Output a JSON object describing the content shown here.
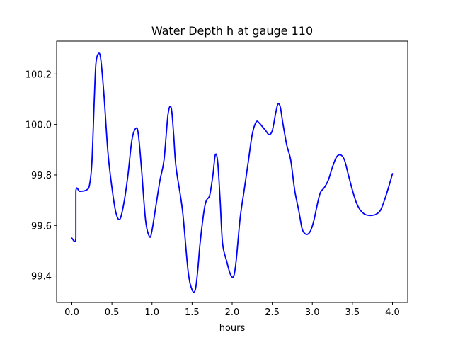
{
  "chart_data": {
    "type": "line",
    "title": "Water Depth h at gauge 110",
    "xlabel": "hours",
    "ylabel": "",
    "xlim": [
      -0.19,
      4.19
    ],
    "ylim": [
      99.295,
      100.33
    ],
    "xticks": [
      0.0,
      0.5,
      1.0,
      1.5,
      2.0,
      2.5,
      3.0,
      3.5,
      4.0
    ],
    "xtick_labels": [
      "0.0",
      "0.5",
      "1.0",
      "1.5",
      "2.0",
      "2.5",
      "3.0",
      "3.5",
      "4.0"
    ],
    "yticks": [
      99.4,
      99.6,
      99.8,
      100.0,
      100.2
    ],
    "ytick_labels": [
      "99.4",
      "99.6",
      "99.8",
      "100.0",
      "100.2"
    ],
    "grid": false,
    "series": [
      {
        "color": "#0000ff",
        "x": [
          0.0,
          0.05,
          0.05,
          0.1,
          0.18,
          0.22,
          0.25,
          0.28,
          0.3,
          0.33,
          0.36,
          0.4,
          0.45,
          0.5,
          0.55,
          0.6,
          0.65,
          0.7,
          0.75,
          0.8,
          0.83,
          0.87,
          0.92,
          0.97,
          1.0,
          1.05,
          1.1,
          1.15,
          1.2,
          1.24,
          1.27,
          1.3,
          1.38,
          1.45,
          1.5,
          1.54,
          1.57,
          1.6,
          1.65,
          1.68,
          1.72,
          1.76,
          1.79,
          1.82,
          1.85,
          1.88,
          1.93,
          1.98,
          2.02,
          2.05,
          2.1,
          2.15,
          2.2,
          2.25,
          2.3,
          2.34,
          2.38,
          2.42,
          2.46,
          2.5,
          2.54,
          2.57,
          2.6,
          2.63,
          2.68,
          2.73,
          2.78,
          2.83,
          2.87,
          2.9,
          2.94,
          2.98,
          3.02,
          3.06,
          3.1,
          3.15,
          3.2,
          3.25,
          3.3,
          3.35,
          3.4,
          3.45,
          3.5,
          3.55,
          3.6,
          3.65,
          3.7,
          3.75,
          3.8,
          3.85,
          3.9,
          3.95,
          4.0
        ],
        "y": [
          99.55,
          99.55,
          99.735,
          99.735,
          99.74,
          99.76,
          99.85,
          100.1,
          100.24,
          100.28,
          100.26,
          100.12,
          99.89,
          99.75,
          99.65,
          99.625,
          99.69,
          99.8,
          99.94,
          99.985,
          99.96,
          99.82,
          99.62,
          99.555,
          99.58,
          99.68,
          99.78,
          99.86,
          100.04,
          100.065,
          99.96,
          99.83,
          99.66,
          99.42,
          99.345,
          99.345,
          99.42,
          99.53,
          99.66,
          99.7,
          99.72,
          99.8,
          99.88,
          99.85,
          99.7,
          99.53,
          99.46,
          99.405,
          99.4,
          99.46,
          99.63,
          99.74,
          99.85,
          99.96,
          100.01,
          100.005,
          99.99,
          99.975,
          99.96,
          99.975,
          100.04,
          100.08,
          100.07,
          100.01,
          99.92,
          99.86,
          99.74,
          99.66,
          99.59,
          99.57,
          99.565,
          99.58,
          99.62,
          99.68,
          99.73,
          99.75,
          99.78,
          99.83,
          99.87,
          99.88,
          99.86,
          99.8,
          99.74,
          99.69,
          99.66,
          99.645,
          99.64,
          99.64,
          99.645,
          99.66,
          99.7,
          99.75,
          99.805
        ]
      }
    ]
  }
}
